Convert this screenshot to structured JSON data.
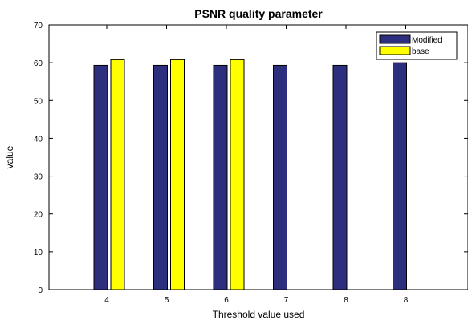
{
  "chart_data": {
    "type": "bar",
    "title": "PSNR quality parameter",
    "xlabel": "Threshold value used",
    "ylabel": "value",
    "categories": [
      "4",
      "5",
      "6",
      "7",
      "8",
      "8"
    ],
    "ylim": [
      0,
      70
    ],
    "yticks": [
      0,
      10,
      20,
      30,
      40,
      50,
      60,
      70
    ],
    "grid": false,
    "legend_position": "top-right",
    "series": [
      {
        "name": "Modified",
        "color": "#2e2e7e",
        "values": [
          59.3,
          59.3,
          59.3,
          59.3,
          59.3,
          60
        ]
      },
      {
        "name": "base",
        "color": "#ffff00",
        "values": [
          60.8,
          60.8,
          60.8,
          null,
          null,
          null
        ]
      }
    ]
  }
}
